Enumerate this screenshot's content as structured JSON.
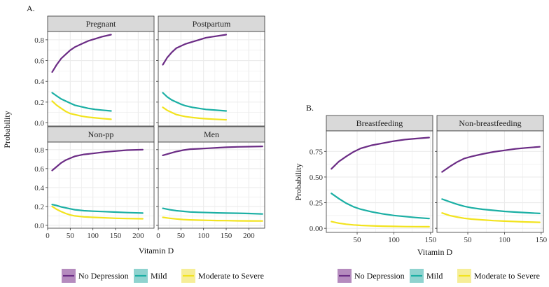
{
  "colors": {
    "no_depression": "#6B2C85",
    "mild": "#1BAFA4",
    "moderate_severe": "#F2E31E",
    "legend_key_no_depression": "#B58BBE",
    "legend_key_mild": "#8FD3CF",
    "legend_key_moderate_severe": "#F6EE98",
    "strip_bg": "#D9D9D9",
    "grid": "#EBEBEB"
  },
  "chart_data": [
    {
      "id": "A",
      "type": "line",
      "label": "A.",
      "xlabel": "Vitamin D",
      "ylabel": "Probability",
      "panels": [
        {
          "title": "Pregnant",
          "xlim": [
            0,
            235
          ],
          "ylim": [
            -0.03,
            0.88
          ],
          "xticks": [],
          "xtick_labels": [],
          "yticks": [
            0,
            0.2,
            0.4,
            0.6,
            0.8
          ],
          "ytick_labels": [
            "0.0",
            "0.2",
            "0.4",
            "0.6",
            "0.8"
          ],
          "series": [
            {
              "name": "No Depression",
              "x": [
                10,
                20,
                30,
                40,
                50,
                60,
                75,
                90,
                105,
                120,
                140
              ],
              "y": [
                0.49,
                0.56,
                0.62,
                0.66,
                0.7,
                0.73,
                0.76,
                0.79,
                0.81,
                0.83,
                0.85
              ]
            },
            {
              "name": "Mild",
              "x": [
                10,
                20,
                30,
                40,
                50,
                60,
                75,
                90,
                105,
                120,
                140
              ],
              "y": [
                0.29,
                0.26,
                0.23,
                0.21,
                0.19,
                0.17,
                0.155,
                0.14,
                0.13,
                0.123,
                0.115
              ]
            },
            {
              "name": "Moderate to Severe",
              "x": [
                10,
                20,
                30,
                40,
                50,
                60,
                75,
                90,
                105,
                120,
                140
              ],
              "y": [
                0.21,
                0.17,
                0.14,
                0.11,
                0.09,
                0.08,
                0.065,
                0.055,
                0.048,
                0.042,
                0.035
              ]
            }
          ]
        },
        {
          "title": "Postpartum",
          "xlim": [
            0,
            235
          ],
          "ylim": [
            -0.03,
            0.88
          ],
          "xticks": [],
          "xtick_labels": [],
          "yticks": [
            0,
            0.2,
            0.4,
            0.6,
            0.8
          ],
          "ytick_labels": [],
          "series": [
            {
              "name": "No Depression",
              "x": [
                10,
                20,
                30,
                40,
                50,
                60,
                75,
                90,
                105,
                120,
                150
              ],
              "y": [
                0.56,
                0.63,
                0.68,
                0.72,
                0.74,
                0.76,
                0.78,
                0.8,
                0.82,
                0.83,
                0.85
              ]
            },
            {
              "name": "Mild",
              "x": [
                10,
                20,
                30,
                40,
                50,
                60,
                75,
                90,
                105,
                120,
                150
              ],
              "y": [
                0.29,
                0.25,
                0.22,
                0.2,
                0.18,
                0.165,
                0.15,
                0.14,
                0.13,
                0.125,
                0.115
              ]
            },
            {
              "name": "Moderate to Severe",
              "x": [
                10,
                20,
                30,
                40,
                50,
                60,
                75,
                90,
                105,
                120,
                150
              ],
              "y": [
                0.15,
                0.12,
                0.1,
                0.08,
                0.07,
                0.06,
                0.052,
                0.045,
                0.04,
                0.036,
                0.03
              ]
            }
          ]
        },
        {
          "title": "Non-pp",
          "xlim": [
            0,
            235
          ],
          "ylim": [
            -0.03,
            0.88
          ],
          "xticks": [
            0,
            50,
            100,
            150,
            200
          ],
          "xtick_labels": [
            "0",
            "50",
            "100",
            "150",
            "200"
          ],
          "yticks": [
            0,
            0.2,
            0.4,
            0.6,
            0.8
          ],
          "ytick_labels": [
            "0.0",
            "0.2",
            "0.4",
            "0.6",
            "0.8"
          ],
          "series": [
            {
              "name": "No Depression",
              "x": [
                10,
                20,
                30,
                40,
                50,
                60,
                80,
                100,
                125,
                150,
                175,
                210
              ],
              "y": [
                0.58,
                0.62,
                0.66,
                0.69,
                0.71,
                0.73,
                0.75,
                0.76,
                0.775,
                0.785,
                0.795,
                0.8
              ]
            },
            {
              "name": "Mild",
              "x": [
                10,
                20,
                30,
                40,
                50,
                60,
                80,
                100,
                125,
                150,
                175,
                210
              ],
              "y": [
                0.22,
                0.21,
                0.195,
                0.185,
                0.175,
                0.165,
                0.155,
                0.15,
                0.145,
                0.14,
                0.135,
                0.13
              ]
            },
            {
              "name": "Moderate to Severe",
              "x": [
                10,
                20,
                30,
                40,
                50,
                60,
                80,
                100,
                125,
                150,
                175,
                210
              ],
              "y": [
                0.2,
                0.17,
                0.145,
                0.125,
                0.11,
                0.1,
                0.09,
                0.085,
                0.08,
                0.075,
                0.072,
                0.07
              ]
            }
          ]
        },
        {
          "title": "Men",
          "xlim": [
            0,
            235
          ],
          "ylim": [
            -0.03,
            0.88
          ],
          "xticks": [
            0,
            50,
            100,
            150,
            200
          ],
          "xtick_labels": [
            "0",
            "50",
            "100",
            "150",
            "200"
          ],
          "yticks": [
            0,
            0.2,
            0.4,
            0.6,
            0.8
          ],
          "ytick_labels": [],
          "series": [
            {
              "name": "No Depression",
              "x": [
                10,
                25,
                40,
                55,
                70,
                90,
                110,
                130,
                150,
                175,
                200,
                230
              ],
              "y": [
                0.74,
                0.76,
                0.78,
                0.795,
                0.805,
                0.81,
                0.815,
                0.82,
                0.825,
                0.83,
                0.832,
                0.835
              ]
            },
            {
              "name": "Mild",
              "x": [
                10,
                25,
                40,
                55,
                70,
                90,
                110,
                130,
                150,
                175,
                200,
                230
              ],
              "y": [
                0.18,
                0.165,
                0.155,
                0.148,
                0.142,
                0.138,
                0.135,
                0.132,
                0.13,
                0.128,
                0.125,
                0.12
              ]
            },
            {
              "name": "Moderate to Severe",
              "x": [
                10,
                25,
                40,
                55,
                70,
                90,
                110,
                130,
                150,
                175,
                200,
                230
              ],
              "y": [
                0.085,
                0.075,
                0.068,
                0.062,
                0.058,
                0.055,
                0.053,
                0.051,
                0.05,
                0.048,
                0.047,
                0.046
              ]
            }
          ]
        }
      ]
    },
    {
      "id": "B",
      "type": "line",
      "label": "B.",
      "xlabel": "Vitamin D",
      "ylabel": "Probability",
      "panels": [
        {
          "title": "Breastfeeding",
          "xlim": [
            8,
            153
          ],
          "ylim": [
            -0.04,
            0.95
          ],
          "xticks": [
            50,
            100,
            150
          ],
          "xtick_labels": [
            "50",
            "100",
            "150"
          ],
          "yticks": [
            0,
            0.25,
            0.5,
            0.75
          ],
          "ytick_labels": [
            "0.00",
            "0.25",
            "0.50",
            "0.75"
          ],
          "series": [
            {
              "name": "No Depression",
              "x": [
                15,
                25,
                35,
                45,
                55,
                70,
                85,
                100,
                115,
                130,
                148
              ],
              "y": [
                0.58,
                0.65,
                0.7,
                0.745,
                0.78,
                0.81,
                0.83,
                0.85,
                0.865,
                0.875,
                0.885
              ]
            },
            {
              "name": "Mild",
              "x": [
                15,
                25,
                35,
                45,
                55,
                70,
                85,
                100,
                115,
                130,
                148
              ],
              "y": [
                0.34,
                0.29,
                0.245,
                0.21,
                0.185,
                0.16,
                0.14,
                0.125,
                0.115,
                0.105,
                0.095
              ]
            },
            {
              "name": "Moderate to Severe",
              "x": [
                15,
                25,
                35,
                45,
                55,
                70,
                85,
                100,
                115,
                130,
                148
              ],
              "y": [
                0.065,
                0.05,
                0.04,
                0.033,
                0.028,
                0.024,
                0.021,
                0.019,
                0.017,
                0.016,
                0.015
              ]
            }
          ]
        },
        {
          "title": "Non-breastfeeding",
          "xlim": [
            8,
            153
          ],
          "ylim": [
            -0.04,
            0.95
          ],
          "xticks": [
            50,
            100,
            150
          ],
          "xtick_labels": [
            "50",
            "100",
            "150"
          ],
          "yticks": [
            0,
            0.25,
            0.5,
            0.75
          ],
          "ytick_labels": [],
          "series": [
            {
              "name": "No Depression",
              "x": [
                15,
                25,
                35,
                45,
                55,
                70,
                85,
                100,
                115,
                130,
                148
              ],
              "y": [
                0.55,
                0.6,
                0.645,
                0.68,
                0.7,
                0.725,
                0.745,
                0.76,
                0.775,
                0.785,
                0.795
              ]
            },
            {
              "name": "Mild",
              "x": [
                15,
                25,
                35,
                45,
                55,
                70,
                85,
                100,
                115,
                130,
                148
              ],
              "y": [
                0.285,
                0.26,
                0.235,
                0.215,
                0.2,
                0.185,
                0.175,
                0.165,
                0.158,
                0.152,
                0.145
              ]
            },
            {
              "name": "Moderate to Severe",
              "x": [
                15,
                25,
                35,
                45,
                55,
                70,
                85,
                100,
                115,
                130,
                148
              ],
              "y": [
                0.15,
                0.125,
                0.11,
                0.098,
                0.09,
                0.082,
                0.075,
                0.07,
                0.066,
                0.062,
                0.058
              ]
            }
          ]
        }
      ]
    }
  ],
  "legend": {
    "items": [
      {
        "label": "No Depression",
        "key": "no_depression"
      },
      {
        "label": "Mild",
        "key": "mild"
      },
      {
        "label": "Moderate to Severe",
        "key": "moderate_severe"
      }
    ]
  }
}
